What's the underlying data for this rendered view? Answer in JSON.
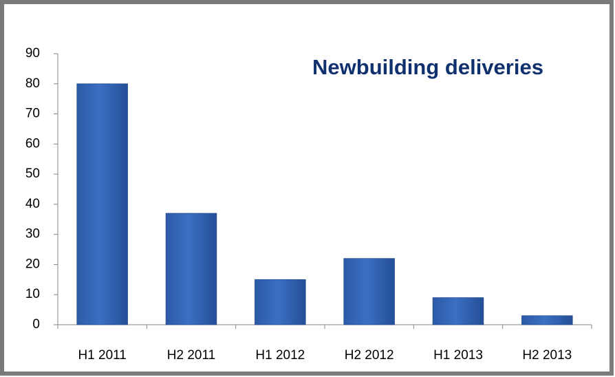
{
  "chart_data": {
    "type": "bar",
    "title": "Newbuilding deliveries",
    "categories": [
      "H1 2011",
      "H2 2011",
      "H1 2012",
      "H2 2012",
      "H1 2013",
      "H2 2013"
    ],
    "values": [
      80,
      37,
      15,
      22,
      9,
      3
    ],
    "color": "#3b6fc3",
    "ylim": [
      0,
      90
    ],
    "yticks": [
      0,
      10,
      20,
      30,
      40,
      50,
      60,
      70,
      80,
      90
    ],
    "grid": false
  }
}
